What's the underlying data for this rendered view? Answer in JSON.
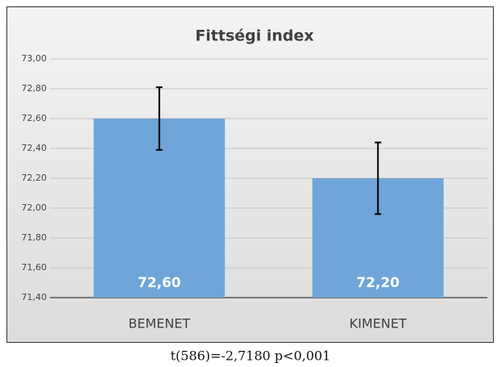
{
  "chart_data": {
    "type": "bar",
    "title": "Fittségi index",
    "categories": [
      "BEMENET",
      "KIMENET"
    ],
    "values": [
      72.6,
      72.2
    ],
    "value_labels": [
      "72,60",
      "72,20"
    ],
    "errors": [
      0.21,
      0.24
    ],
    "color": "#6fa5d8",
    "ylim": [
      71.4,
      73.0
    ],
    "yticks": [
      {
        "value": 71.4,
        "label": "71,40"
      },
      {
        "value": 71.6,
        "label": "71,60"
      },
      {
        "value": 71.8,
        "label": "71,80"
      },
      {
        "value": 72.0,
        "label": "72,00"
      },
      {
        "value": 72.2,
        "label": "72,20"
      },
      {
        "value": 72.4,
        "label": "72,40"
      },
      {
        "value": 72.6,
        "label": "72,60"
      },
      {
        "value": 72.8,
        "label": "72,80"
      },
      {
        "value": 73.0,
        "label": "73,00"
      }
    ],
    "grid": true
  },
  "caption": "t(586)=-2,7180 p<0,001"
}
